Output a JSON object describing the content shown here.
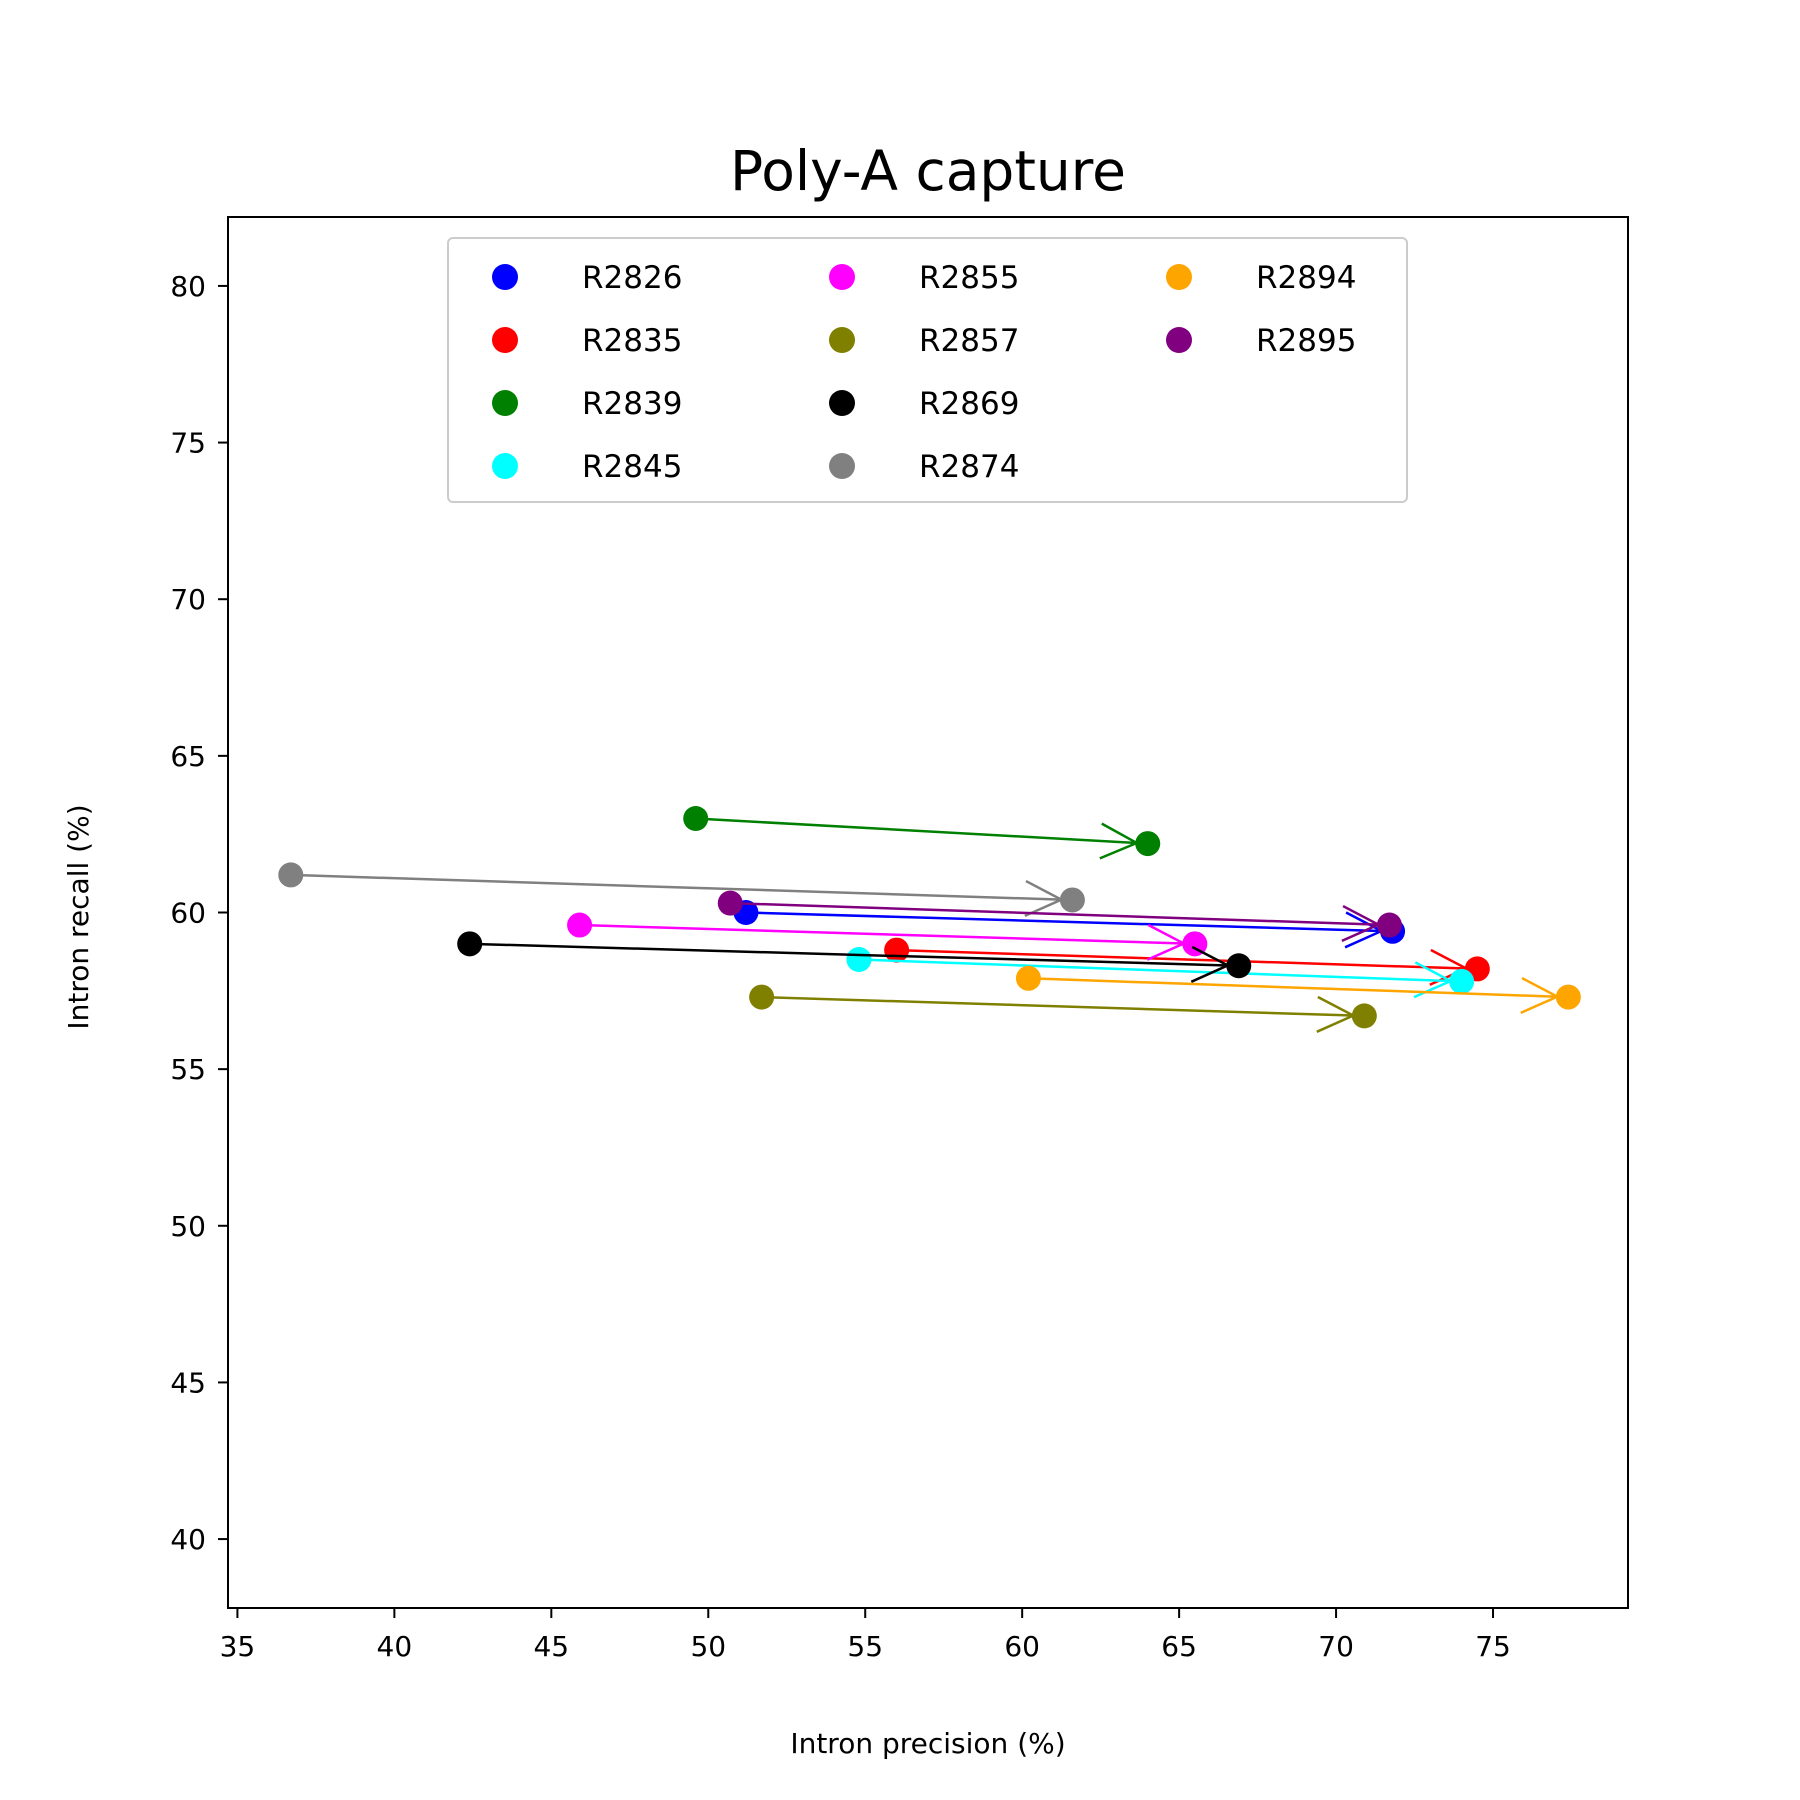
{
  "chart_data": {
    "type": "scatter",
    "title": "Poly-A capture",
    "xlabel": "Intron precision (%)",
    "ylabel": "Intron recall (%)",
    "xlim": [
      34.7,
      79.3
    ],
    "ylim": [
      37.8,
      82.2
    ],
    "xticks": [
      35,
      40,
      45,
      50,
      55,
      60,
      65,
      70,
      75
    ],
    "yticks": [
      40,
      45,
      50,
      55,
      60,
      65,
      70,
      75,
      80
    ],
    "grid": false,
    "legend_position": "upper-center",
    "legend_columns": 3,
    "series": [
      {
        "name": "R2826",
        "color": "#0000ff",
        "start": {
          "x": 51.2,
          "y": 60.0
        },
        "end": {
          "x": 71.8,
          "y": 59.4
        }
      },
      {
        "name": "R2835",
        "color": "#ff0000",
        "start": {
          "x": 56.0,
          "y": 58.8
        },
        "end": {
          "x": 74.5,
          "y": 58.2
        }
      },
      {
        "name": "R2839",
        "color": "#008000",
        "start": {
          "x": 49.6,
          "y": 63.0
        },
        "end": {
          "x": 64.0,
          "y": 62.2
        }
      },
      {
        "name": "R2845",
        "color": "#00ffff",
        "start": {
          "x": 54.8,
          "y": 58.5
        },
        "end": {
          "x": 74.0,
          "y": 57.8
        }
      },
      {
        "name": "R2855",
        "color": "#ff00ff",
        "start": {
          "x": 45.9,
          "y": 59.6
        },
        "end": {
          "x": 65.5,
          "y": 59.0
        }
      },
      {
        "name": "R2857",
        "color": "#808000",
        "start": {
          "x": 51.7,
          "y": 57.3
        },
        "end": {
          "x": 70.9,
          "y": 56.7
        }
      },
      {
        "name": "R2869",
        "color": "#000000",
        "start": {
          "x": 42.4,
          "y": 59.0
        },
        "end": {
          "x": 66.9,
          "y": 58.3
        }
      },
      {
        "name": "R2874",
        "color": "#808080",
        "start": {
          "x": 36.7,
          "y": 61.2
        },
        "end": {
          "x": 61.6,
          "y": 60.4
        }
      },
      {
        "name": "R2894",
        "color": "#ffa500",
        "start": {
          "x": 60.2,
          "y": 57.9
        },
        "end": {
          "x": 77.4,
          "y": 57.3
        }
      },
      {
        "name": "R2895",
        "color": "#800080",
        "start": {
          "x": 50.7,
          "y": 60.3
        },
        "end": {
          "x": 71.7,
          "y": 59.6
        }
      }
    ]
  }
}
